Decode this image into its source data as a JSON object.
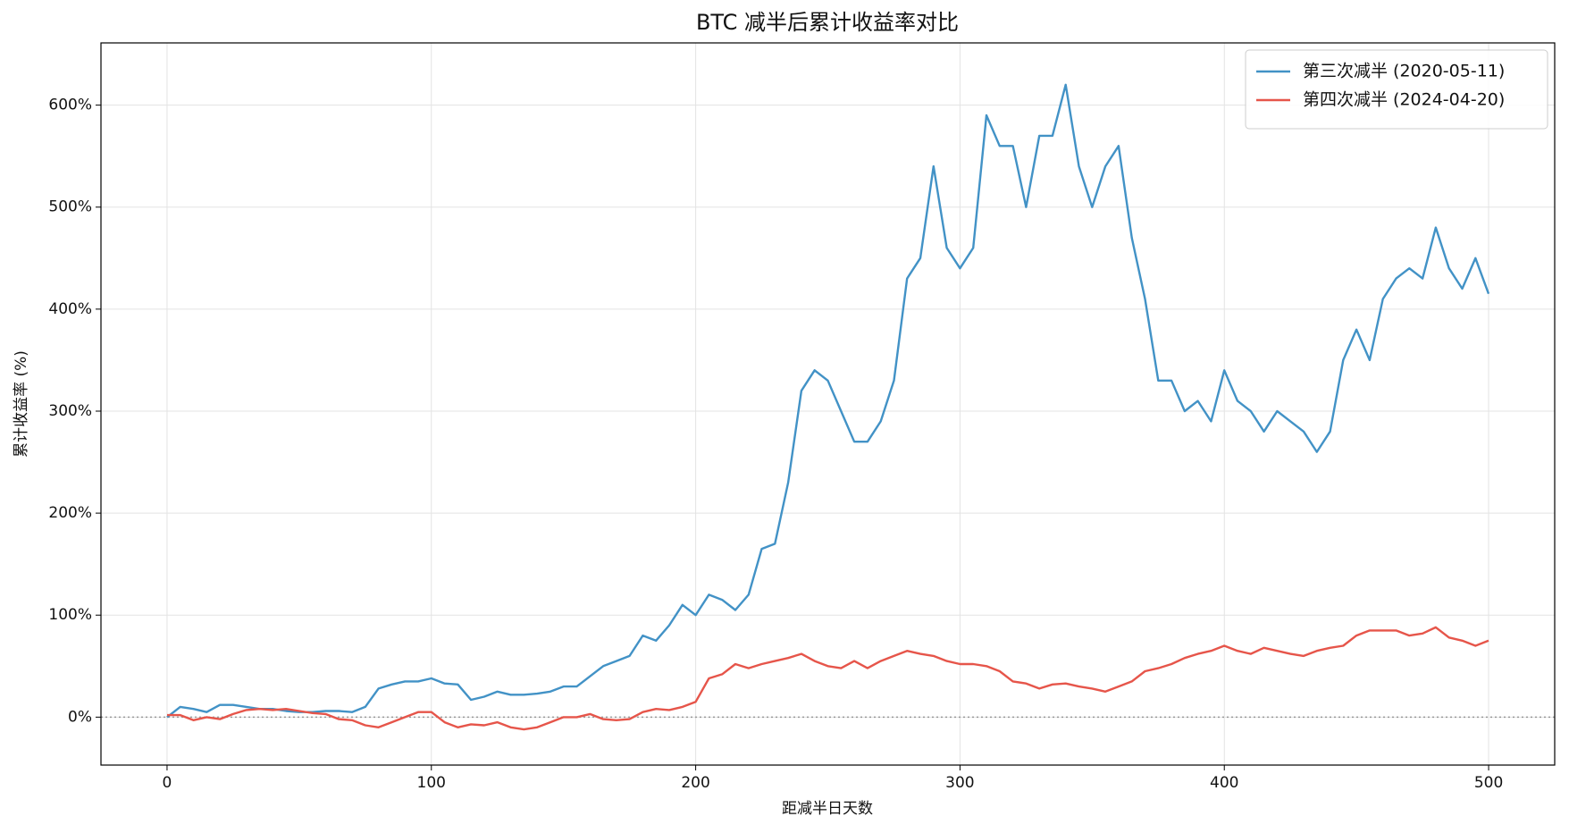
{
  "chart_data": {
    "type": "line",
    "title": "BTC 减半后累计收益率对比",
    "xlabel": "距减半日天数",
    "ylabel": "累计收益率 (%)",
    "x": [
      0,
      5,
      10,
      15,
      20,
      25,
      30,
      35,
      40,
      45,
      50,
      55,
      60,
      65,
      70,
      75,
      80,
      85,
      90,
      95,
      100,
      105,
      110,
      115,
      120,
      125,
      130,
      135,
      140,
      145,
      150,
      155,
      160,
      165,
      170,
      175,
      180,
      185,
      190,
      195,
      200,
      205,
      210,
      215,
      220,
      225,
      230,
      235,
      240,
      245,
      250,
      255,
      260,
      265,
      270,
      275,
      280,
      285,
      290,
      295,
      300,
      305,
      310,
      315,
      320,
      325,
      330,
      335,
      340,
      345,
      350,
      355,
      360,
      365,
      370,
      375,
      380,
      385,
      390,
      395,
      400,
      405,
      410,
      415,
      420,
      425,
      430,
      435,
      440,
      445,
      450,
      455,
      460,
      465,
      470,
      475,
      480,
      485,
      490,
      495,
      500
    ],
    "series": [
      {
        "name": "第三次减半 (2020-05-11)",
        "color": "#4292c6",
        "values": [
          0,
          10,
          8,
          5,
          12,
          12,
          10,
          8,
          8,
          6,
          5,
          5,
          6,
          6,
          5,
          10,
          28,
          32,
          35,
          35,
          38,
          33,
          32,
          17,
          20,
          25,
          22,
          22,
          23,
          25,
          30,
          30,
          40,
          50,
          55,
          60,
          80,
          75,
          90,
          110,
          100,
          120,
          115,
          105,
          120,
          165,
          170,
          230,
          320,
          340,
          330,
          300,
          270,
          270,
          290,
          330,
          430,
          450,
          540,
          460,
          440,
          460,
          590,
          560,
          560,
          500,
          570,
          570,
          620,
          540,
          500,
          540,
          560,
          470,
          410,
          330,
          330,
          300,
          310,
          290,
          340,
          310,
          300,
          280,
          300,
          290,
          280,
          260,
          280,
          350,
          380,
          350,
          410,
          430,
          440,
          430,
          480,
          440,
          420,
          450,
          415
        ]
      },
      {
        "name": "第四次减半 (2024-04-20)",
        "color": "#e6554a",
        "values": [
          2,
          2,
          -3,
          0,
          -2,
          3,
          7,
          8,
          7,
          8,
          6,
          4,
          3,
          -2,
          -3,
          -8,
          -10,
          -5,
          0,
          5,
          5,
          -5,
          -10,
          -7,
          -8,
          -5,
          -10,
          -12,
          -10,
          -5,
          0,
          0,
          3,
          -2,
          -3,
          -2,
          5,
          8,
          7,
          10,
          15,
          38,
          42,
          52,
          48,
          52,
          55,
          58,
          62,
          55,
          50,
          48,
          55,
          48,
          55,
          60,
          65,
          62,
          60,
          55,
          52,
          52,
          50,
          45,
          35,
          33,
          28,
          32,
          33,
          30,
          28,
          25,
          30,
          35,
          45,
          48,
          52,
          58,
          62,
          65,
          70,
          65,
          62,
          68,
          65,
          62,
          60,
          65,
          68,
          70,
          80,
          85,
          85,
          85,
          80,
          82,
          88,
          78,
          75,
          70,
          75
        ]
      }
    ],
    "xlim": [
      -25,
      525
    ],
    "ylim": [
      -47,
      661
    ],
    "xticks": [
      0,
      100,
      200,
      300,
      400,
      500
    ],
    "yticks": [
      {
        "value": 0,
        "label": "0%"
      },
      {
        "value": 100,
        "label": "100%"
      },
      {
        "value": 200,
        "label": "200%"
      },
      {
        "value": 300,
        "label": "300%"
      },
      {
        "value": 400,
        "label": "400%"
      },
      {
        "value": 500,
        "label": "500%"
      },
      {
        "value": 600,
        "label": "600%"
      }
    ],
    "reference_line": 0,
    "grid": true,
    "legend": "upper right"
  }
}
